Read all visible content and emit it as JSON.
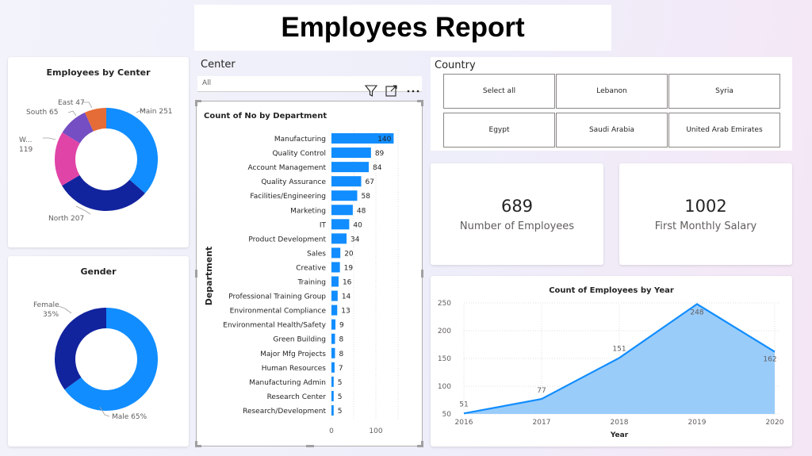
{
  "report": {
    "title": "Employees Report"
  },
  "center_donut": {
    "title": "Employees by Center",
    "labels": {
      "main": "Main 251",
      "north": "North 207",
      "w_name": "W...",
      "w_value": "119",
      "south": "South 65",
      "east": "East 47"
    }
  },
  "gender_donut": {
    "title": "Gender",
    "labels": {
      "female_name": "Female",
      "female_pct": "35%",
      "male": "Male 65%"
    }
  },
  "center_slicer": {
    "title": "Center",
    "value": "All"
  },
  "visual_header_icons": [
    "filter-icon",
    "focus-mode-icon",
    "more-options-icon"
  ],
  "country_slicer": {
    "title": "Country",
    "options": [
      "Select all",
      "Lebanon",
      "Syria",
      "Egypt",
      "Saudi Arabia",
      "United Arab Emirates"
    ]
  },
  "kpi_employees": {
    "value": "689",
    "label": "Number of Employees"
  },
  "kpi_salary": {
    "value": "1002",
    "label": "First Monthly Salary"
  },
  "colors": {
    "main": "#118DFF",
    "north": "#12239E",
    "west": "#E044A7",
    "south": "#744EC2",
    "east": "#E66C37",
    "female": "#12239E",
    "male": "#118DFF",
    "bar": "#118DFF",
    "area_fill": "#9ACCFA",
    "area_line": "#118DFF"
  },
  "chart_data": [
    {
      "type": "pie",
      "title": "Employees by Center",
      "categories": [
        "Main",
        "North",
        "W...",
        "South",
        "East"
      ],
      "values": [
        251,
        207,
        119,
        65,
        47
      ]
    },
    {
      "type": "pie",
      "title": "Gender",
      "categories": [
        "Male",
        "Female"
      ],
      "values": [
        65,
        35
      ]
    },
    {
      "type": "bar",
      "title": "Count of No by Department",
      "ylabel": "Department",
      "categories": [
        "Manufacturing",
        "Quality Control",
        "Account Management",
        "Quality Assurance",
        "Facilities/Engineering",
        "Marketing",
        "IT",
        "Product Development",
        "Sales",
        "Creative",
        "Training",
        "Professional Training Group",
        "Environmental Compliance",
        "Environmental Health/Safety",
        "Green Building",
        "Major Mfg Projects",
        "Human Resources",
        "Manufacturing Admin",
        "Research Center",
        "Research/Development"
      ],
      "values": [
        140,
        89,
        84,
        67,
        58,
        48,
        40,
        34,
        20,
        19,
        16,
        14,
        13,
        9,
        8,
        8,
        7,
        5,
        5,
        5
      ],
      "xticks": [
        "0",
        "100"
      ]
    },
    {
      "type": "area",
      "title": "Count of Employees by Year",
      "xlabel": "Year",
      "x": [
        "2016",
        "2017",
        "2018",
        "2019",
        "2020"
      ],
      "values": [
        51,
        77,
        151,
        248,
        162
      ],
      "ylim": [
        50,
        250
      ],
      "yticks": [
        "50",
        "100",
        "150",
        "200",
        "250"
      ]
    }
  ]
}
